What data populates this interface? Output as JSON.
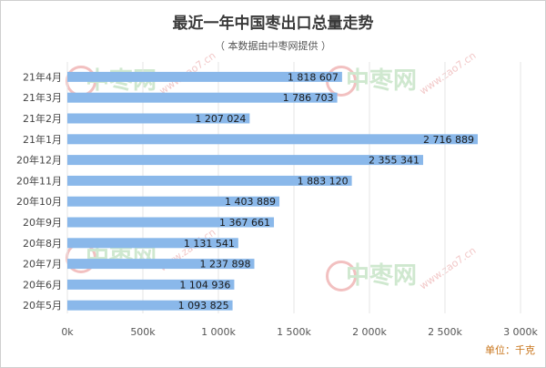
{
  "chart_data": {
    "type": "bar",
    "orientation": "horizontal",
    "title": "最近一年中国枣出口总量走势",
    "subtitle": "（ 本数据由中枣网提供 ）",
    "unit_label": "单位：千克",
    "categories": [
      "21年4月",
      "21年3月",
      "21年2月",
      "21年1月",
      "20年12月",
      "20年11月",
      "20年10月",
      "20年9月",
      "20年8月",
      "20年7月",
      "20年6月",
      "20年5月"
    ],
    "values": [
      1818607,
      1786703,
      1207024,
      2716889,
      2355341,
      1883120,
      1403889,
      1367661,
      1131541,
      1237898,
      1104936,
      1093825
    ],
    "value_labels": [
      "1 818 607",
      "1 786 703",
      "1 207 024",
      "2 716 889",
      "2 355 341",
      "1 883 120",
      "1 403 889",
      "1 367 661",
      "1 131 541",
      "1 237 898",
      "1 104 936",
      "1 093 825"
    ],
    "xlim": [
      0,
      3000000
    ],
    "xticks": [
      0,
      500000,
      1000000,
      1500000,
      2000000,
      2500000,
      3000000
    ],
    "xtick_labels": [
      "0k",
      "500k",
      "1 000k",
      "1 500k",
      "2 000k",
      "2 500k",
      "3 000k"
    ],
    "bar_color": "#8ab8ea",
    "grid": true
  },
  "watermark": {
    "brand": "中枣网",
    "url": "www.zao7.cn",
    "brand_color": "#cfe8cf",
    "logo_color": "#f2c0c0"
  }
}
